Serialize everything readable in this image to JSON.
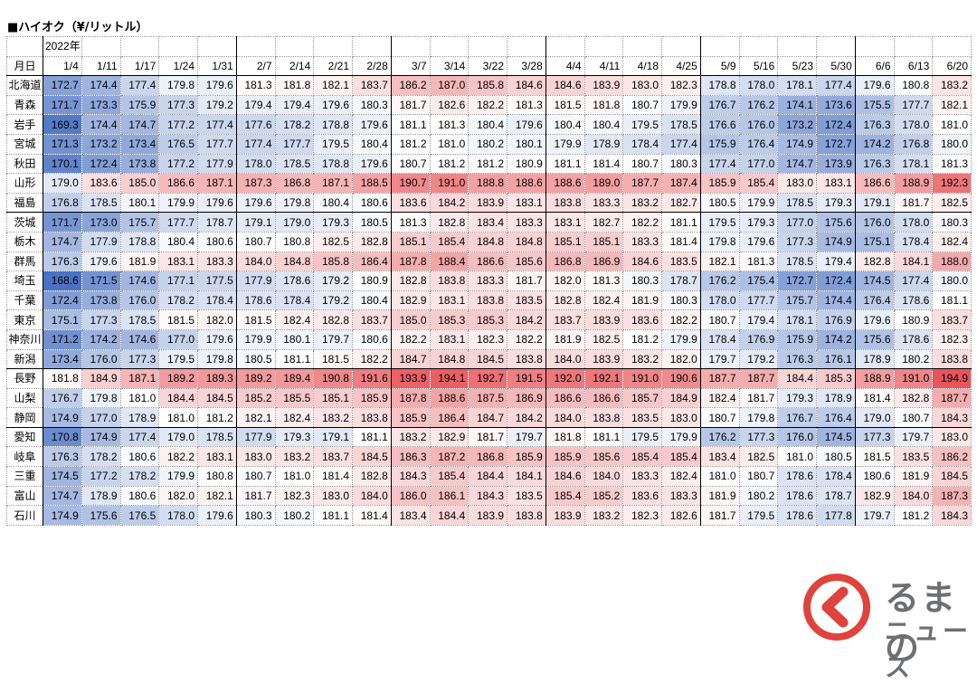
{
  "title": "■ハイオク（¥/リットル）",
  "chart_data": {
    "type": "table",
    "year_label": "2022年",
    "corner_label": "月日",
    "columns": [
      "1/4",
      "1/11",
      "1/17",
      "1/24",
      "1/31",
      "2/7",
      "2/14",
      "2/21",
      "2/28",
      "3/7",
      "3/14",
      "3/22",
      "3/28",
      "4/4",
      "4/11",
      "4/18",
      "4/25",
      "5/9",
      "5/16",
      "5/23",
      "5/30",
      "6/6",
      "6/13",
      "6/20"
    ],
    "rows": [
      {
        "pref": "北海道",
        "values": [
          172.7,
          174.4,
          177.4,
          179.8,
          179.6,
          181.3,
          181.8,
          182.1,
          183.7,
          186.2,
          187.0,
          185.8,
          184.6,
          184.6,
          183.9,
          183.0,
          182.3,
          178.8,
          178.0,
          178.1,
          177.4,
          179.6,
          180.8,
          183.2
        ]
      },
      {
        "pref": "青森",
        "values": [
          171.7,
          173.3,
          175.9,
          177.3,
          179.2,
          179.4,
          179.4,
          179.6,
          180.3,
          181.7,
          182.6,
          182.2,
          181.3,
          181.5,
          181.8,
          180.7,
          179.9,
          176.7,
          176.2,
          174.1,
          173.6,
          175.5,
          177.7,
          182.1
        ]
      },
      {
        "pref": "岩手",
        "values": [
          169.3,
          174.4,
          174.7,
          177.2,
          177.4,
          177.6,
          178.2,
          178.8,
          179.6,
          181.1,
          181.3,
          180.4,
          179.6,
          180.4,
          180.4,
          179.5,
          178.5,
          176.6,
          176.0,
          173.2,
          172.4,
          176.3,
          178.0,
          181.0
        ]
      },
      {
        "pref": "宮城",
        "values": [
          171.3,
          173.2,
          173.4,
          176.5,
          177.7,
          177.4,
          177.7,
          179.5,
          180.4,
          181.2,
          181.0,
          180.2,
          180.1,
          179.9,
          178.9,
          178.4,
          177.4,
          175.9,
          176.4,
          174.9,
          172.7,
          174.2,
          176.8,
          180.0
        ]
      },
      {
        "pref": "秋田",
        "values": [
          170.1,
          172.4,
          173.8,
          177.2,
          177.9,
          178.0,
          178.5,
          178.8,
          179.6,
          180.7,
          181.2,
          181.2,
          180.9,
          181.1,
          181.4,
          180.7,
          180.3,
          177.4,
          177.0,
          174.7,
          173.9,
          176.3,
          178.1,
          181.3
        ]
      },
      {
        "pref": "山形",
        "values": [
          179.0,
          183.6,
          185.0,
          186.6,
          187.1,
          187.3,
          186.8,
          187.1,
          188.5,
          190.7,
          191.0,
          188.8,
          188.6,
          188.6,
          189.0,
          187.7,
          187.4,
          185.9,
          185.4,
          183.0,
          183.1,
          186.6,
          188.9,
          192.3
        ]
      },
      {
        "pref": "福島",
        "values": [
          176.8,
          178.5,
          180.1,
          179.9,
          179.6,
          179.6,
          179.8,
          180.4,
          180.6,
          183.6,
          184.2,
          183.9,
          183.1,
          183.8,
          183.3,
          183.2,
          182.7,
          180.5,
          179.9,
          178.5,
          179.3,
          179.1,
          181.7,
          182.5
        ]
      },
      {
        "pref": "茨城",
        "values": [
          171.7,
          173.0,
          175.7,
          177.7,
          178.7,
          179.1,
          179.0,
          179.3,
          180.5,
          181.3,
          182.8,
          183.4,
          183.3,
          183.1,
          182.7,
          182.2,
          181.1,
          179.5,
          179.3,
          177.0,
          175.6,
          176.0,
          178.0,
          180.3
        ]
      },
      {
        "pref": "栃木",
        "values": [
          174.7,
          177.9,
          178.8,
          180.4,
          180.6,
          180.7,
          180.8,
          182.5,
          182.8,
          185.1,
          185.4,
          184.8,
          184.8,
          185.1,
          185.1,
          183.3,
          181.4,
          179.8,
          179.6,
          177.3,
          174.9,
          175.1,
          178.4,
          182.4
        ]
      },
      {
        "pref": "群馬",
        "values": [
          176.3,
          179.6,
          181.9,
          183.1,
          183.3,
          184.0,
          184.8,
          185.8,
          186.4,
          187.8,
          188.4,
          186.6,
          185.6,
          186.8,
          186.9,
          184.6,
          183.5,
          182.1,
          181.3,
          178.5,
          179.4,
          182.8,
          184.1,
          188.0
        ]
      },
      {
        "pref": "埼玉",
        "values": [
          168.6,
          171.5,
          174.6,
          177.1,
          177.5,
          177.9,
          178.6,
          179.2,
          180.9,
          182.8,
          183.8,
          183.3,
          181.7,
          182.0,
          181.3,
          180.3,
          178.7,
          176.2,
          175.4,
          172.7,
          172.4,
          174.5,
          177.4,
          180.0
        ]
      },
      {
        "pref": "千葉",
        "values": [
          172.4,
          173.8,
          176.0,
          178.2,
          178.4,
          178.6,
          178.4,
          179.2,
          180.4,
          182.9,
          183.1,
          183.8,
          183.5,
          182.8,
          182.4,
          181.9,
          180.3,
          178.0,
          177.7,
          175.7,
          174.4,
          176.4,
          178.6,
          181.1
        ]
      },
      {
        "pref": "東京",
        "values": [
          175.1,
          177.3,
          178.5,
          181.5,
          182.0,
          181.5,
          182.4,
          182.8,
          183.7,
          185.0,
          185.3,
          185.3,
          184.2,
          183.7,
          183.9,
          183.6,
          182.2,
          180.7,
          179.4,
          178.1,
          176.9,
          179.6,
          180.9,
          183.7
        ]
      },
      {
        "pref": "神奈川",
        "values": [
          171.2,
          174.2,
          174.6,
          177.0,
          179.6,
          179.9,
          180.1,
          179.7,
          180.6,
          182.2,
          183.1,
          182.3,
          182.2,
          181.9,
          182.5,
          181.2,
          179.9,
          178.4,
          176.9,
          175.9,
          174.2,
          175.6,
          178.6,
          182.3
        ]
      },
      {
        "pref": "新潟",
        "values": [
          173.4,
          176.0,
          177.3,
          179.5,
          179.8,
          180.5,
          181.1,
          181.5,
          182.2,
          184.7,
          184.8,
          184.5,
          183.8,
          184.0,
          183.9,
          183.2,
          182.0,
          179.7,
          179.2,
          176.3,
          176.1,
          178.9,
          180.2,
          183.8
        ]
      },
      {
        "pref": "長野",
        "values": [
          181.8,
          184.9,
          187.1,
          189.2,
          189.3,
          189.2,
          189.4,
          190.8,
          191.6,
          193.9,
          194.1,
          192.7,
          191.5,
          192.0,
          192.1,
          191.0,
          190.6,
          187.7,
          187.7,
          184.4,
          185.3,
          188.9,
          191.0,
          194.9
        ]
      },
      {
        "pref": "山梨",
        "values": [
          176.7,
          179.8,
          181.0,
          184.4,
          184.5,
          185.2,
          185.5,
          185.1,
          185.9,
          187.8,
          188.6,
          187.5,
          186.9,
          186.6,
          186.6,
          185.7,
          184.9,
          182.4,
          181.7,
          179.3,
          178.9,
          181.4,
          182.8,
          187.7
        ]
      },
      {
        "pref": "静岡",
        "values": [
          174.9,
          177.0,
          178.9,
          181.0,
          181.2,
          182.1,
          182.4,
          183.2,
          183.8,
          185.9,
          186.4,
          184.7,
          184.2,
          184.0,
          183.8,
          183.5,
          183.0,
          180.7,
          179.8,
          176.7,
          176.4,
          179.0,
          180.7,
          184.3
        ]
      },
      {
        "pref": "愛知",
        "values": [
          170.8,
          174.9,
          177.4,
          179.0,
          178.5,
          177.9,
          179.3,
          179.1,
          181.1,
          183.2,
          182.9,
          181.7,
          179.7,
          181.8,
          181.1,
          179.5,
          179.9,
          176.2,
          177.3,
          176.0,
          174.5,
          177.3,
          179.7,
          183.0
        ]
      },
      {
        "pref": "岐阜",
        "values": [
          176.3,
          178.2,
          180.6,
          182.2,
          183.1,
          183.0,
          183.2,
          183.7,
          184.5,
          186.3,
          187.2,
          186.8,
          185.9,
          185.9,
          185.6,
          185.4,
          185.4,
          183.4,
          182.5,
          181.0,
          180.5,
          181.5,
          183.5,
          186.2
        ]
      },
      {
        "pref": "三重",
        "values": [
          174.5,
          177.2,
          178.2,
          179.9,
          180.8,
          180.7,
          181.0,
          181.4,
          182.8,
          184.3,
          185.4,
          184.4,
          184.1,
          184.6,
          184.0,
          183.3,
          182.4,
          181.0,
          180.7,
          178.6,
          178.4,
          180.6,
          181.9,
          184.5
        ]
      },
      {
        "pref": "富山",
        "values": [
          174.7,
          178.9,
          180.6,
          182.0,
          182.1,
          181.7,
          182.3,
          183.0,
          184.0,
          186.0,
          186.1,
          184.3,
          183.5,
          185.4,
          185.2,
          183.6,
          183.3,
          181.9,
          180.2,
          178.6,
          178.7,
          182.9,
          184.0,
          187.3
        ]
      },
      {
        "pref": "石川",
        "values": [
          174.9,
          175.6,
          176.5,
          178.0,
          179.6,
          180.3,
          180.2,
          181.1,
          181.4,
          183.4,
          184.4,
          183.9,
          183.8,
          183.9,
          183.2,
          182.3,
          182.6,
          181.7,
          179.5,
          178.6,
          177.8,
          179.7,
          181.2,
          184.3
        ]
      }
    ],
    "group_breaks_after": [
      "福島",
      "新潟",
      "静岡"
    ],
    "month_breaks_before": [
      "1/4",
      "2/7",
      "3/7",
      "4/4",
      "5/9",
      "6/6"
    ],
    "color_scale": {
      "min_color": "#4a72c4",
      "mid_color": "#ffffff",
      "max_color": "#e8555a",
      "min": 168.6,
      "mid": 181.0,
      "max": 194.9
    }
  },
  "logo": {
    "word_top": "るまの",
    "word_bottom": "ニュース",
    "color": "#e0423c"
  }
}
